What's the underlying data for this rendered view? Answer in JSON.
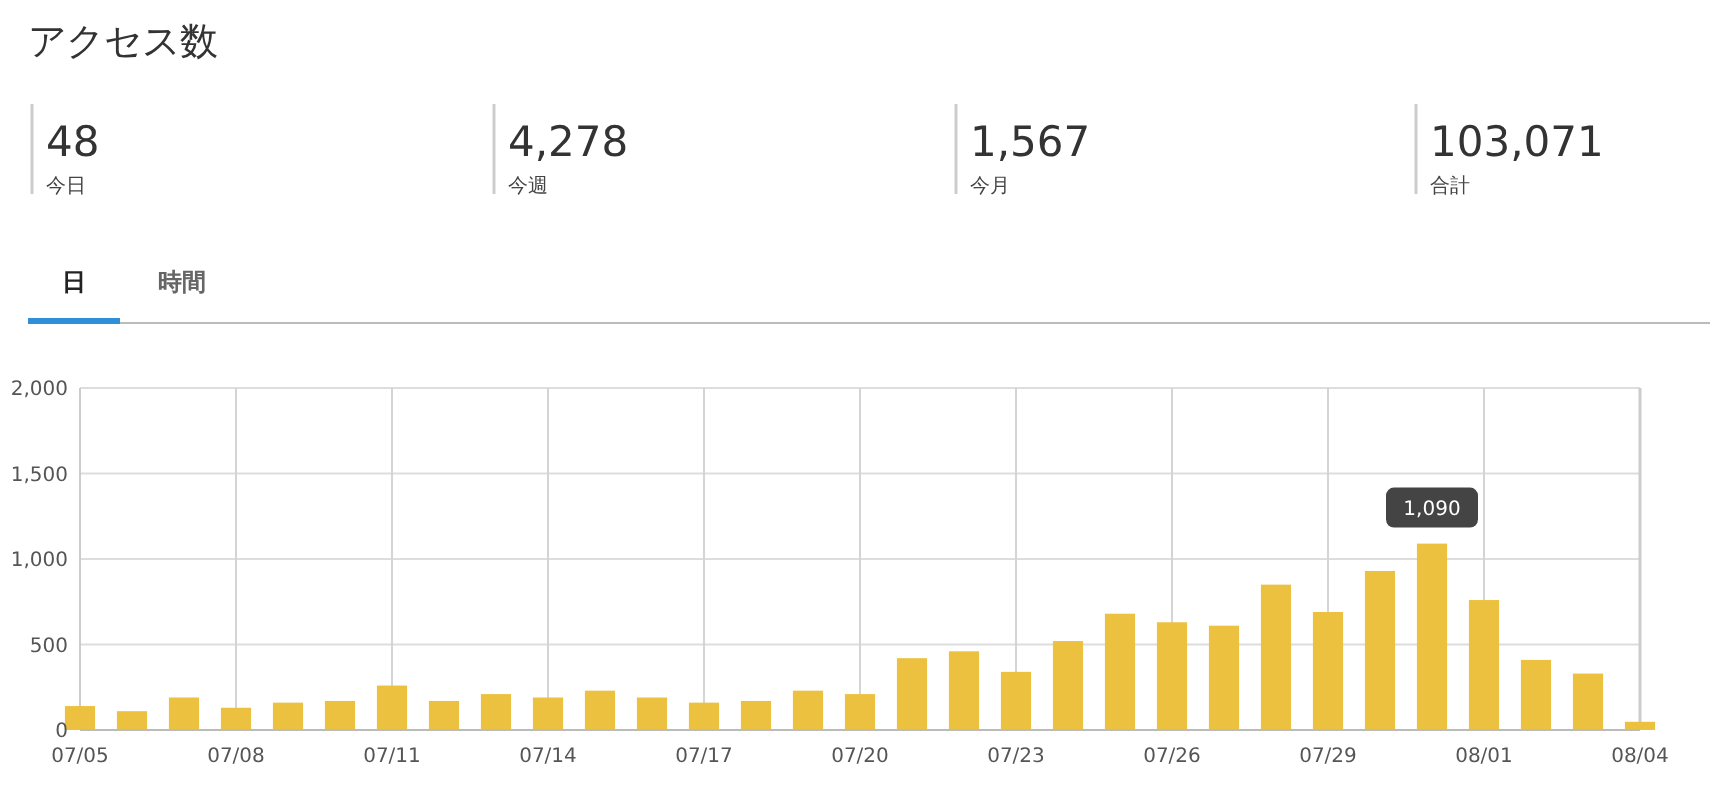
{
  "chart_data": [
    {
      "type": "other",
      "title": "アクセス数",
      "annotations": [
        "48",
        "今日",
        "4,278",
        "今週",
        "1,567",
        "今月",
        "103,071",
        "合計",
        "日",
        "時間"
      ]
    },
    {
      "type": "bar",
      "categories": [
        "07/05",
        null,
        null,
        "07/08",
        null,
        null,
        "07/11",
        null,
        null,
        "07/14",
        null,
        null,
        "07/17",
        null,
        null,
        "07/20",
        null,
        null,
        "07/23",
        null,
        null,
        "07/26",
        null,
        null,
        "07/29",
        null,
        null,
        "08/01",
        null,
        null,
        "08/04"
      ],
      "values": [
        140,
        110,
        190,
        130,
        160,
        170,
        260,
        170,
        210,
        190,
        230,
        190,
        160,
        170,
        230,
        210,
        420,
        460,
        340,
        520,
        680,
        630,
        610,
        850,
        690,
        930,
        1090,
        760,
        410,
        330,
        48
      ],
      "color": "#ecc13f",
      "ylim": [
        0,
        2000
      ],
      "yticks": [
        0,
        500,
        {
          "value": 1000,
          "label": "1,000"
        },
        {
          "value": 1500,
          "label": "1,500"
        },
        {
          "value": 2000,
          "label": "2,000"
        }
      ],
      "grid": true,
      "annotations": [
        {
          "text": "1,090",
          "y": 1090
        }
      ]
    }
  ]
}
